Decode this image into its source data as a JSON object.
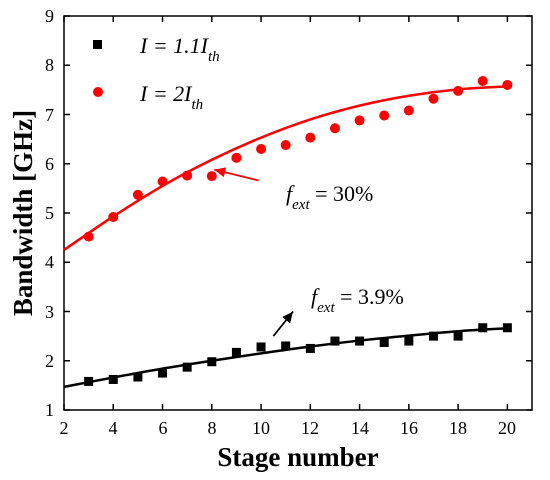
{
  "chart_data": {
    "type": "scatter",
    "title": "",
    "xlabel": "Stage number",
    "ylabel": "Bandwidth [GHz]",
    "xlim": [
      2,
      21
    ],
    "ylim": [
      1,
      9
    ],
    "xticks": [
      2,
      4,
      6,
      8,
      10,
      12,
      14,
      16,
      18,
      20
    ],
    "yticks": [
      1,
      2,
      3,
      4,
      5,
      6,
      7,
      8,
      9
    ],
    "grid": false,
    "legend_position": "top-left",
    "series": [
      {
        "legend": {
          "main": "I = 1.1I",
          "sub": "th"
        },
        "marker": "square",
        "color": "#000000",
        "x": [
          3,
          4,
          5,
          6,
          7,
          8,
          9,
          10,
          11,
          12,
          13,
          14,
          15,
          16,
          17,
          18,
          19,
          20
        ],
        "y": [
          1.58,
          1.62,
          1.67,
          1.75,
          1.87,
          1.98,
          2.17,
          2.28,
          2.3,
          2.25,
          2.4,
          2.4,
          2.37,
          2.4,
          2.5,
          2.5,
          2.67,
          2.67
        ],
        "fit": {
          "x": [
            2,
            4,
            6,
            8,
            10,
            12,
            14,
            16,
            18,
            20
          ],
          "y": [
            1.47,
            1.66,
            1.84,
            2.0,
            2.15,
            2.29,
            2.41,
            2.51,
            2.6,
            2.66
          ]
        }
      },
      {
        "legend": {
          "main": "I = 2I",
          "sub": "th"
        },
        "marker": "circle",
        "color": "#ff0000",
        "x": [
          3,
          4,
          5,
          6,
          7,
          8,
          9,
          10,
          11,
          12,
          13,
          14,
          15,
          16,
          17,
          18,
          19,
          20
        ],
        "y": [
          4.52,
          4.92,
          5.37,
          5.64,
          5.76,
          5.75,
          6.12,
          6.3,
          6.38,
          6.53,
          6.72,
          6.88,
          6.98,
          7.08,
          7.32,
          7.48,
          7.68,
          7.6
        ],
        "fit": {
          "x": [
            2,
            4,
            6,
            8,
            10,
            12,
            14,
            16,
            18,
            20
          ],
          "y": [
            4.25,
            4.93,
            5.55,
            6.08,
            6.53,
            6.9,
            7.18,
            7.38,
            7.51,
            7.57
          ]
        }
      }
    ],
    "annotations": [
      {
        "var": "f",
        "sub": "ext",
        "text": " = 30%",
        "color": "#ff0000",
        "arrow_from": [
          9.9,
          5.66
        ],
        "arrow_to": [
          8.1,
          5.88
        ]
      },
      {
        "var": "f",
        "sub": "ext",
        "text": " = 3.9%",
        "color": "#000000",
        "arrow_from": [
          10.5,
          2.5
        ],
        "arrow_to": [
          11.3,
          3.0
        ]
      }
    ]
  }
}
